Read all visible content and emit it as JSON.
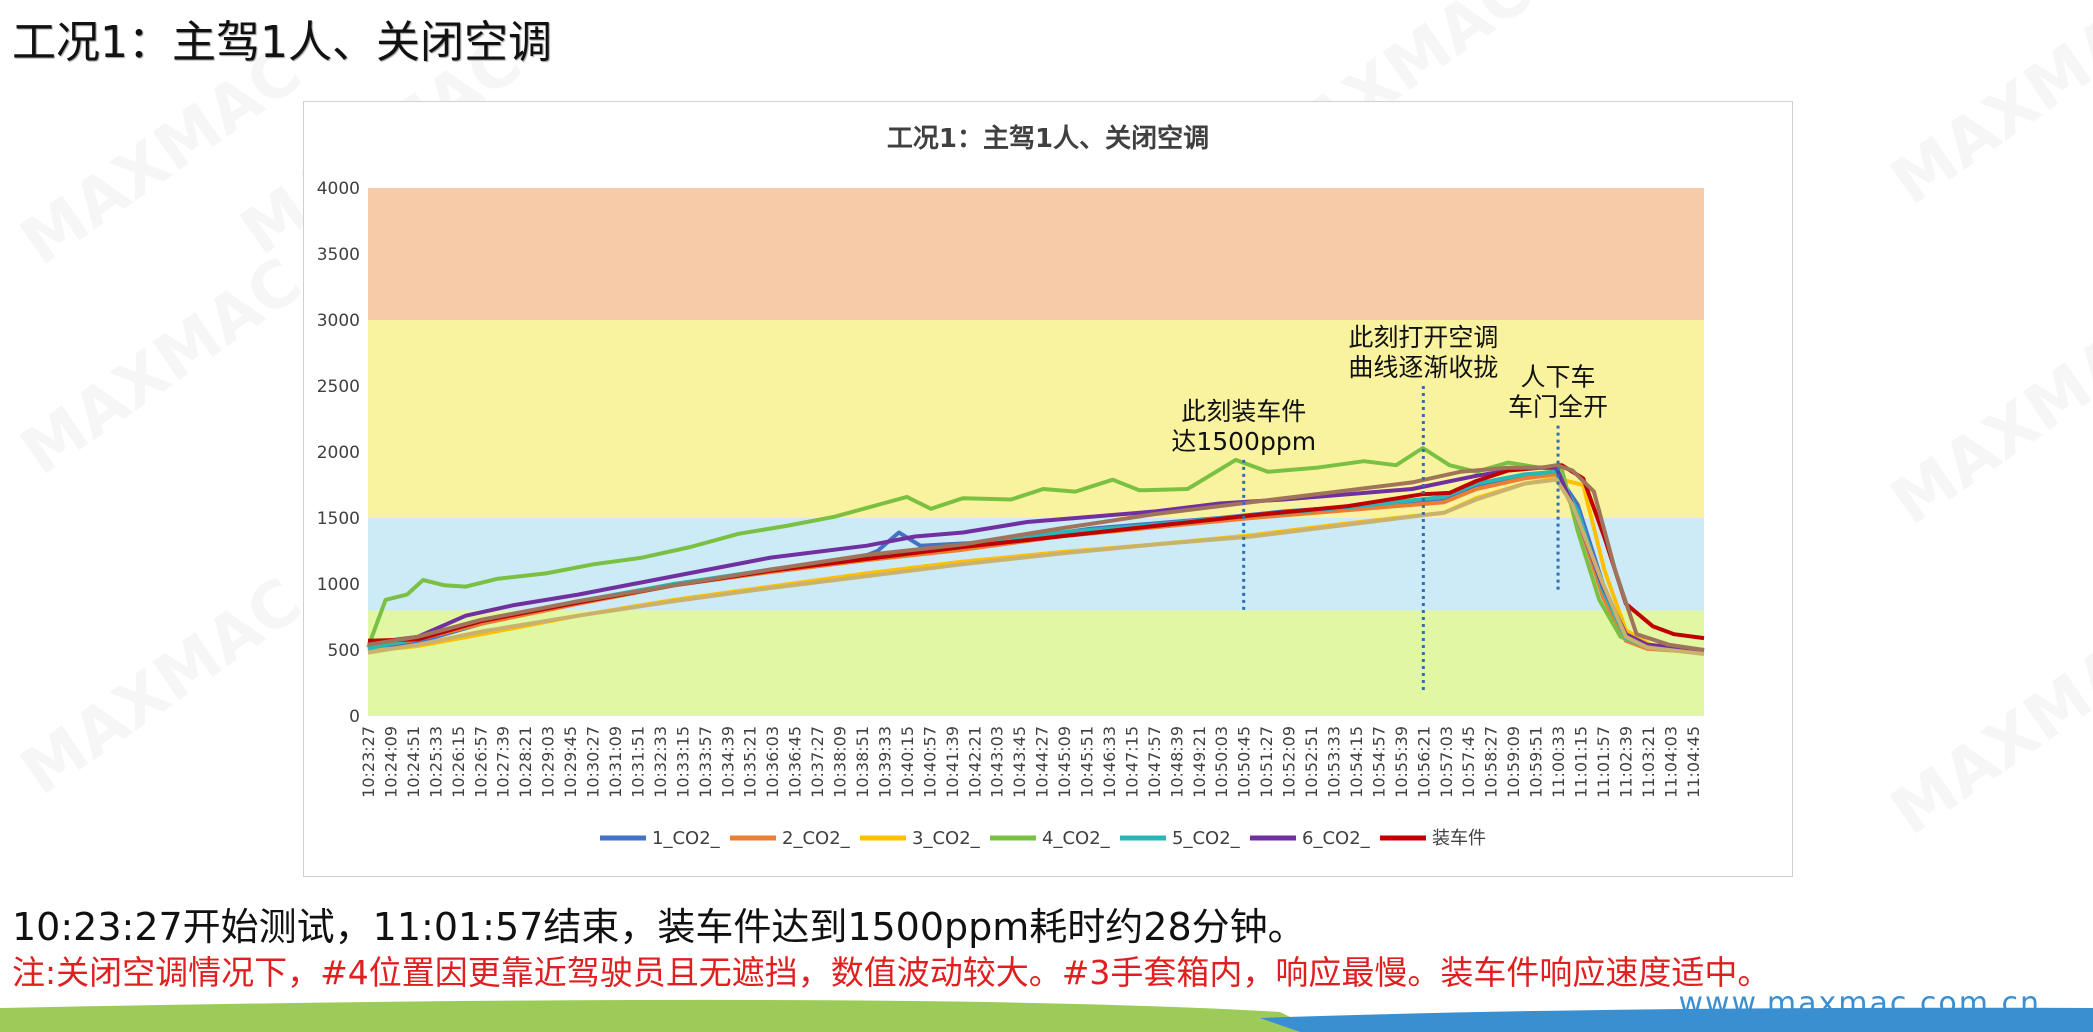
{
  "slide": {
    "title": "工况1：主驾1人、关闭空调",
    "summary": "10:23:27开始测试，11:01:57结束，装车件达到1500ppm耗时约28分钟。",
    "note": "注:关闭空调情况下，#4位置因更靠近驾驶员且无遮挡，数值波动较大。#3手套箱内，响应最慢。装车件响应速度适中。",
    "website": "www.maxmac.com.cn",
    "watermark": "MAXMAC"
  },
  "chart_data": {
    "type": "line",
    "title": "工况1：主驾1人、关闭空调",
    "xlabel": "",
    "ylabel": "",
    "ylim": [
      0,
      4000
    ],
    "yticks": [
      0,
      500,
      1000,
      1500,
      2000,
      2500,
      3000,
      3500,
      4000
    ],
    "grid": false,
    "legend_position": "bottom",
    "bands": [
      {
        "from": 0,
        "to": 800,
        "color": "#e2f7a4"
      },
      {
        "from": 800,
        "to": 1500,
        "color": "#cdeaf7"
      },
      {
        "from": 1500,
        "to": 3000,
        "color": "#f9f3a0"
      },
      {
        "from": 3000,
        "to": 4000,
        "color": "#f7cba8"
      }
    ],
    "x_start": "10:23:27",
    "x_end": "11:05:06",
    "x_ticks": [
      "10:23:27",
      "10:24:09",
      "10:24:51",
      "10:25:33",
      "10:26:15",
      "10:26:57",
      "10:27:39",
      "10:28:21",
      "10:29:03",
      "10:29:45",
      "10:30:27",
      "10:31:09",
      "10:31:51",
      "10:32:33",
      "10:33:15",
      "10:33:57",
      "10:34:39",
      "10:35:21",
      "10:36:03",
      "10:36:45",
      "10:37:27",
      "10:38:09",
      "10:38:51",
      "10:39:33",
      "10:40:15",
      "10:40:57",
      "10:41:39",
      "10:42:21",
      "10:43:03",
      "10:43:45",
      "10:44:27",
      "10:45:09",
      "10:45:51",
      "10:46:33",
      "10:47:15",
      "10:47:57",
      "10:48:39",
      "10:49:21",
      "10:50:03",
      "10:50:45",
      "10:51:27",
      "10:52:09",
      "10:52:51",
      "10:53:33",
      "10:54:15",
      "10:54:57",
      "10:55:39",
      "10:56:21",
      "10:57:03",
      "10:57:45",
      "10:58:27",
      "10:59:09",
      "10:59:51",
      "11:00:33",
      "11:01:15",
      "11:01:57",
      "11:02:39",
      "11:03:21",
      "11:04:03",
      "11:04:45"
    ],
    "series": [
      {
        "name": "1_CO2_",
        "color": "#4472c4",
        "points": [
          [
            "10:23:27",
            500
          ],
          [
            "10:25:00",
            560
          ],
          [
            "10:27:00",
            700
          ],
          [
            "10:30:00",
            860
          ],
          [
            "10:33:00",
            1000
          ],
          [
            "10:36:00",
            1100
          ],
          [
            "10:38:30",
            1170
          ],
          [
            "10:39:20",
            1250
          ],
          [
            "10:40:00",
            1390
          ],
          [
            "10:40:40",
            1290
          ],
          [
            "10:43:00",
            1320
          ],
          [
            "10:46:00",
            1420
          ],
          [
            "10:50:00",
            1500
          ],
          [
            "10:52:00",
            1550
          ],
          [
            "10:55:00",
            1600
          ],
          [
            "10:57:00",
            1650
          ],
          [
            "10:58:00",
            1750
          ],
          [
            "10:59:30",
            1820
          ],
          [
            "11:00:30",
            1840
          ],
          [
            "11:01:10",
            1600
          ],
          [
            "11:01:57",
            1000
          ],
          [
            "11:02:40",
            600
          ],
          [
            "11:03:20",
            520
          ],
          [
            "11:05:06",
            490
          ]
        ]
      },
      {
        "name": "2_CO2_",
        "color": "#ed7d31",
        "points": [
          [
            "10:23:27",
            520
          ],
          [
            "10:25:00",
            580
          ],
          [
            "10:27:00",
            700
          ],
          [
            "10:30:00",
            850
          ],
          [
            "10:33:00",
            990
          ],
          [
            "10:36:00",
            1090
          ],
          [
            "10:39:00",
            1180
          ],
          [
            "10:42:00",
            1260
          ],
          [
            "10:45:00",
            1360
          ],
          [
            "10:48:00",
            1430
          ],
          [
            "10:51:00",
            1500
          ],
          [
            "10:54:00",
            1560
          ],
          [
            "10:57:00",
            1620
          ],
          [
            "10:58:00",
            1720
          ],
          [
            "10:59:30",
            1800
          ],
          [
            "11:00:30",
            1830
          ],
          [
            "11:01:10",
            1500
          ],
          [
            "11:01:57",
            900
          ],
          [
            "11:02:40",
            570
          ],
          [
            "11:03:20",
            510
          ],
          [
            "11:05:06",
            480
          ]
        ]
      },
      {
        "name": "3_CO2_",
        "color": "#ffc000",
        "points": [
          [
            "10:23:27",
            490
          ],
          [
            "10:25:00",
            530
          ],
          [
            "10:27:00",
            620
          ],
          [
            "10:30:00",
            760
          ],
          [
            "10:33:00",
            880
          ],
          [
            "10:36:00",
            980
          ],
          [
            "10:39:00",
            1080
          ],
          [
            "10:42:00",
            1170
          ],
          [
            "10:45:00",
            1240
          ],
          [
            "10:48:00",
            1300
          ],
          [
            "10:51:00",
            1370
          ],
          [
            "10:54:00",
            1460
          ],
          [
            "10:57:00",
            1540
          ],
          [
            "10:58:00",
            1650
          ],
          [
            "10:59:30",
            1760
          ],
          [
            "11:00:30",
            1800
          ],
          [
            "11:01:20",
            1750
          ],
          [
            "11:02:00",
            1100
          ],
          [
            "11:02:40",
            650
          ],
          [
            "11:03:30",
            530
          ],
          [
            "11:05:06",
            500
          ]
        ]
      },
      {
        "name": "4_CO2_",
        "color": "#7ac143",
        "points": [
          [
            "10:23:27",
            520
          ],
          [
            "10:24:00",
            880
          ],
          [
            "10:24:40",
            920
          ],
          [
            "10:25:10",
            1030
          ],
          [
            "10:25:50",
            990
          ],
          [
            "10:26:30",
            980
          ],
          [
            "10:27:30",
            1040
          ],
          [
            "10:29:00",
            1080
          ],
          [
            "10:30:30",
            1150
          ],
          [
            "10:32:00",
            1200
          ],
          [
            "10:33:30",
            1280
          ],
          [
            "10:35:00",
            1380
          ],
          [
            "10:36:30",
            1440
          ],
          [
            "10:38:00",
            1510
          ],
          [
            "10:39:30",
            1610
          ],
          [
            "10:40:15",
            1660
          ],
          [
            "10:41:00",
            1570
          ],
          [
            "10:42:00",
            1650
          ],
          [
            "10:43:30",
            1640
          ],
          [
            "10:44:30",
            1720
          ],
          [
            "10:45:30",
            1700
          ],
          [
            "10:46:40",
            1790
          ],
          [
            "10:47:30",
            1710
          ],
          [
            "10:49:00",
            1720
          ],
          [
            "10:50:30",
            1940
          ],
          [
            "10:51:30",
            1850
          ],
          [
            "10:53:00",
            1880
          ],
          [
            "10:54:30",
            1930
          ],
          [
            "10:55:30",
            1900
          ],
          [
            "10:56:20",
            2030
          ],
          [
            "10:57:10",
            1900
          ],
          [
            "10:58:00",
            1850
          ],
          [
            "10:59:00",
            1920
          ],
          [
            "11:00:00",
            1880
          ],
          [
            "11:00:40",
            1870
          ],
          [
            "11:01:10",
            1400
          ],
          [
            "11:01:50",
            880
          ],
          [
            "11:02:30",
            600
          ],
          [
            "11:03:20",
            520
          ],
          [
            "11:05:06",
            500
          ]
        ]
      },
      {
        "name": "5_CO2_",
        "color": "#2cb5b5",
        "points": [
          [
            "10:23:27",
            510
          ],
          [
            "10:25:00",
            590
          ],
          [
            "10:27:00",
            720
          ],
          [
            "10:30:00",
            870
          ],
          [
            "10:33:00",
            1000
          ],
          [
            "10:36:00",
            1110
          ],
          [
            "10:39:00",
            1200
          ],
          [
            "10:42:00",
            1300
          ],
          [
            "10:45:00",
            1390
          ],
          [
            "10:48:00",
            1450
          ],
          [
            "10:51:00",
            1520
          ],
          [
            "10:54:00",
            1580
          ],
          [
            "10:57:00",
            1660
          ],
          [
            "10:58:00",
            1760
          ],
          [
            "10:59:30",
            1830
          ],
          [
            "11:00:30",
            1850
          ],
          [
            "11:01:10",
            1550
          ],
          [
            "11:01:57",
            950
          ],
          [
            "11:02:40",
            590
          ],
          [
            "11:03:20",
            520
          ],
          [
            "11:05:06",
            490
          ]
        ]
      },
      {
        "name": "6_CO2_",
        "color": "#7030a0",
        "points": [
          [
            "10:23:27",
            550
          ],
          [
            "10:25:00",
            600
          ],
          [
            "10:26:30",
            760
          ],
          [
            "10:28:00",
            840
          ],
          [
            "10:30:00",
            920
          ],
          [
            "10:33:00",
            1060
          ],
          [
            "10:36:00",
            1200
          ],
          [
            "10:39:00",
            1290
          ],
          [
            "10:40:30",
            1360
          ],
          [
            "10:42:00",
            1390
          ],
          [
            "10:44:00",
            1470
          ],
          [
            "10:46:00",
            1510
          ],
          [
            "10:48:00",
            1550
          ],
          [
            "10:50:00",
            1610
          ],
          [
            "10:52:00",
            1640
          ],
          [
            "10:54:00",
            1680
          ],
          [
            "10:56:00",
            1720
          ],
          [
            "10:58:00",
            1820
          ],
          [
            "10:59:30",
            1880
          ],
          [
            "11:00:30",
            1880
          ],
          [
            "11:01:00",
            1600
          ],
          [
            "11:01:57",
            980
          ],
          [
            "11:02:40",
            620
          ],
          [
            "11:03:20",
            540
          ],
          [
            "11:05:06",
            500
          ]
        ]
      },
      {
        "name": "装车件",
        "color": "#c00000",
        "points": [
          [
            "10:23:27",
            570
          ],
          [
            "10:25:00",
            580
          ],
          [
            "10:27:00",
            720
          ],
          [
            "10:30:00",
            860
          ],
          [
            "10:33:00",
            990
          ],
          [
            "10:36:00",
            1100
          ],
          [
            "10:39:00",
            1190
          ],
          [
            "10:42:00",
            1280
          ],
          [
            "10:45:00",
            1360
          ],
          [
            "10:48:00",
            1440
          ],
          [
            "10:51:00",
            1520
          ],
          [
            "10:54:00",
            1590
          ],
          [
            "10:56:20",
            1680
          ],
          [
            "10:57:10",
            1690
          ],
          [
            "10:58:00",
            1780
          ],
          [
            "10:59:00",
            1860
          ],
          [
            "11:00:00",
            1880
          ],
          [
            "11:00:40",
            1900
          ],
          [
            "11:01:20",
            1800
          ],
          [
            "11:02:00",
            1350
          ],
          [
            "11:02:40",
            850
          ],
          [
            "11:03:30",
            680
          ],
          [
            "11:04:10",
            620
          ],
          [
            "11:05:06",
            590
          ]
        ]
      },
      {
        "name": "",
        "color": "#a0745a",
        "points": [
          [
            "10:23:27",
            540
          ],
          [
            "10:25:00",
            600
          ],
          [
            "10:27:00",
            730
          ],
          [
            "10:30:00",
            870
          ],
          [
            "10:33:00",
            990
          ],
          [
            "10:36:00",
            1110
          ],
          [
            "10:39:00",
            1220
          ],
          [
            "10:42:00",
            1300
          ],
          [
            "10:45:00",
            1420
          ],
          [
            "10:48:00",
            1530
          ],
          [
            "10:51:00",
            1620
          ],
          [
            "10:54:00",
            1710
          ],
          [
            "10:56:00",
            1770
          ],
          [
            "10:57:30",
            1850
          ],
          [
            "10:59:00",
            1880
          ],
          [
            "11:00:00",
            1880
          ],
          [
            "11:00:30",
            1900
          ],
          [
            "11:01:00",
            1860
          ],
          [
            "11:01:40",
            1700
          ],
          [
            "11:02:20",
            1100
          ],
          [
            "11:03:00",
            620
          ],
          [
            "11:04:00",
            540
          ],
          [
            "11:05:06",
            500
          ]
        ]
      },
      {
        "name": "",
        "color": "#c9b26d",
        "points": [
          [
            "10:23:27",
            480
          ],
          [
            "10:25:00",
            540
          ],
          [
            "10:27:00",
            640
          ],
          [
            "10:30:00",
            760
          ],
          [
            "10:33:00",
            870
          ],
          [
            "10:36:00",
            970
          ],
          [
            "10:39:00",
            1060
          ],
          [
            "10:42:00",
            1150
          ],
          [
            "10:45:00",
            1230
          ],
          [
            "10:48:00",
            1300
          ],
          [
            "10:51:00",
            1360
          ],
          [
            "10:54:00",
            1450
          ],
          [
            "10:57:00",
            1540
          ],
          [
            "10:58:00",
            1640
          ],
          [
            "10:59:30",
            1760
          ],
          [
            "11:00:30",
            1790
          ],
          [
            "11:01:00",
            1600
          ],
          [
            "11:01:57",
            1000
          ],
          [
            "11:02:40",
            600
          ],
          [
            "11:03:20",
            520
          ],
          [
            "11:05:06",
            470
          ]
        ]
      }
    ],
    "legend": [
      "1_CO2_",
      "2_CO2_",
      "3_CO2_",
      "4_CO2_",
      "5_CO2_",
      "6_CO2_",
      "装车件"
    ],
    "annotations": [
      {
        "lines": [
          "此刻装车件",
          "达1500ppm"
        ],
        "x": "10:50:45",
        "y_top": 1940,
        "y_bottom": 800
      },
      {
        "lines": [
          "此刻打开空调",
          "曲线逐渐收拢"
        ],
        "x": "10:56:21",
        "y_top": 2500,
        "y_bottom": 170
      },
      {
        "lines": [
          "人下车",
          "车门全开"
        ],
        "x": "11:00:33",
        "y_top": 2200,
        "y_bottom": 950
      }
    ]
  }
}
